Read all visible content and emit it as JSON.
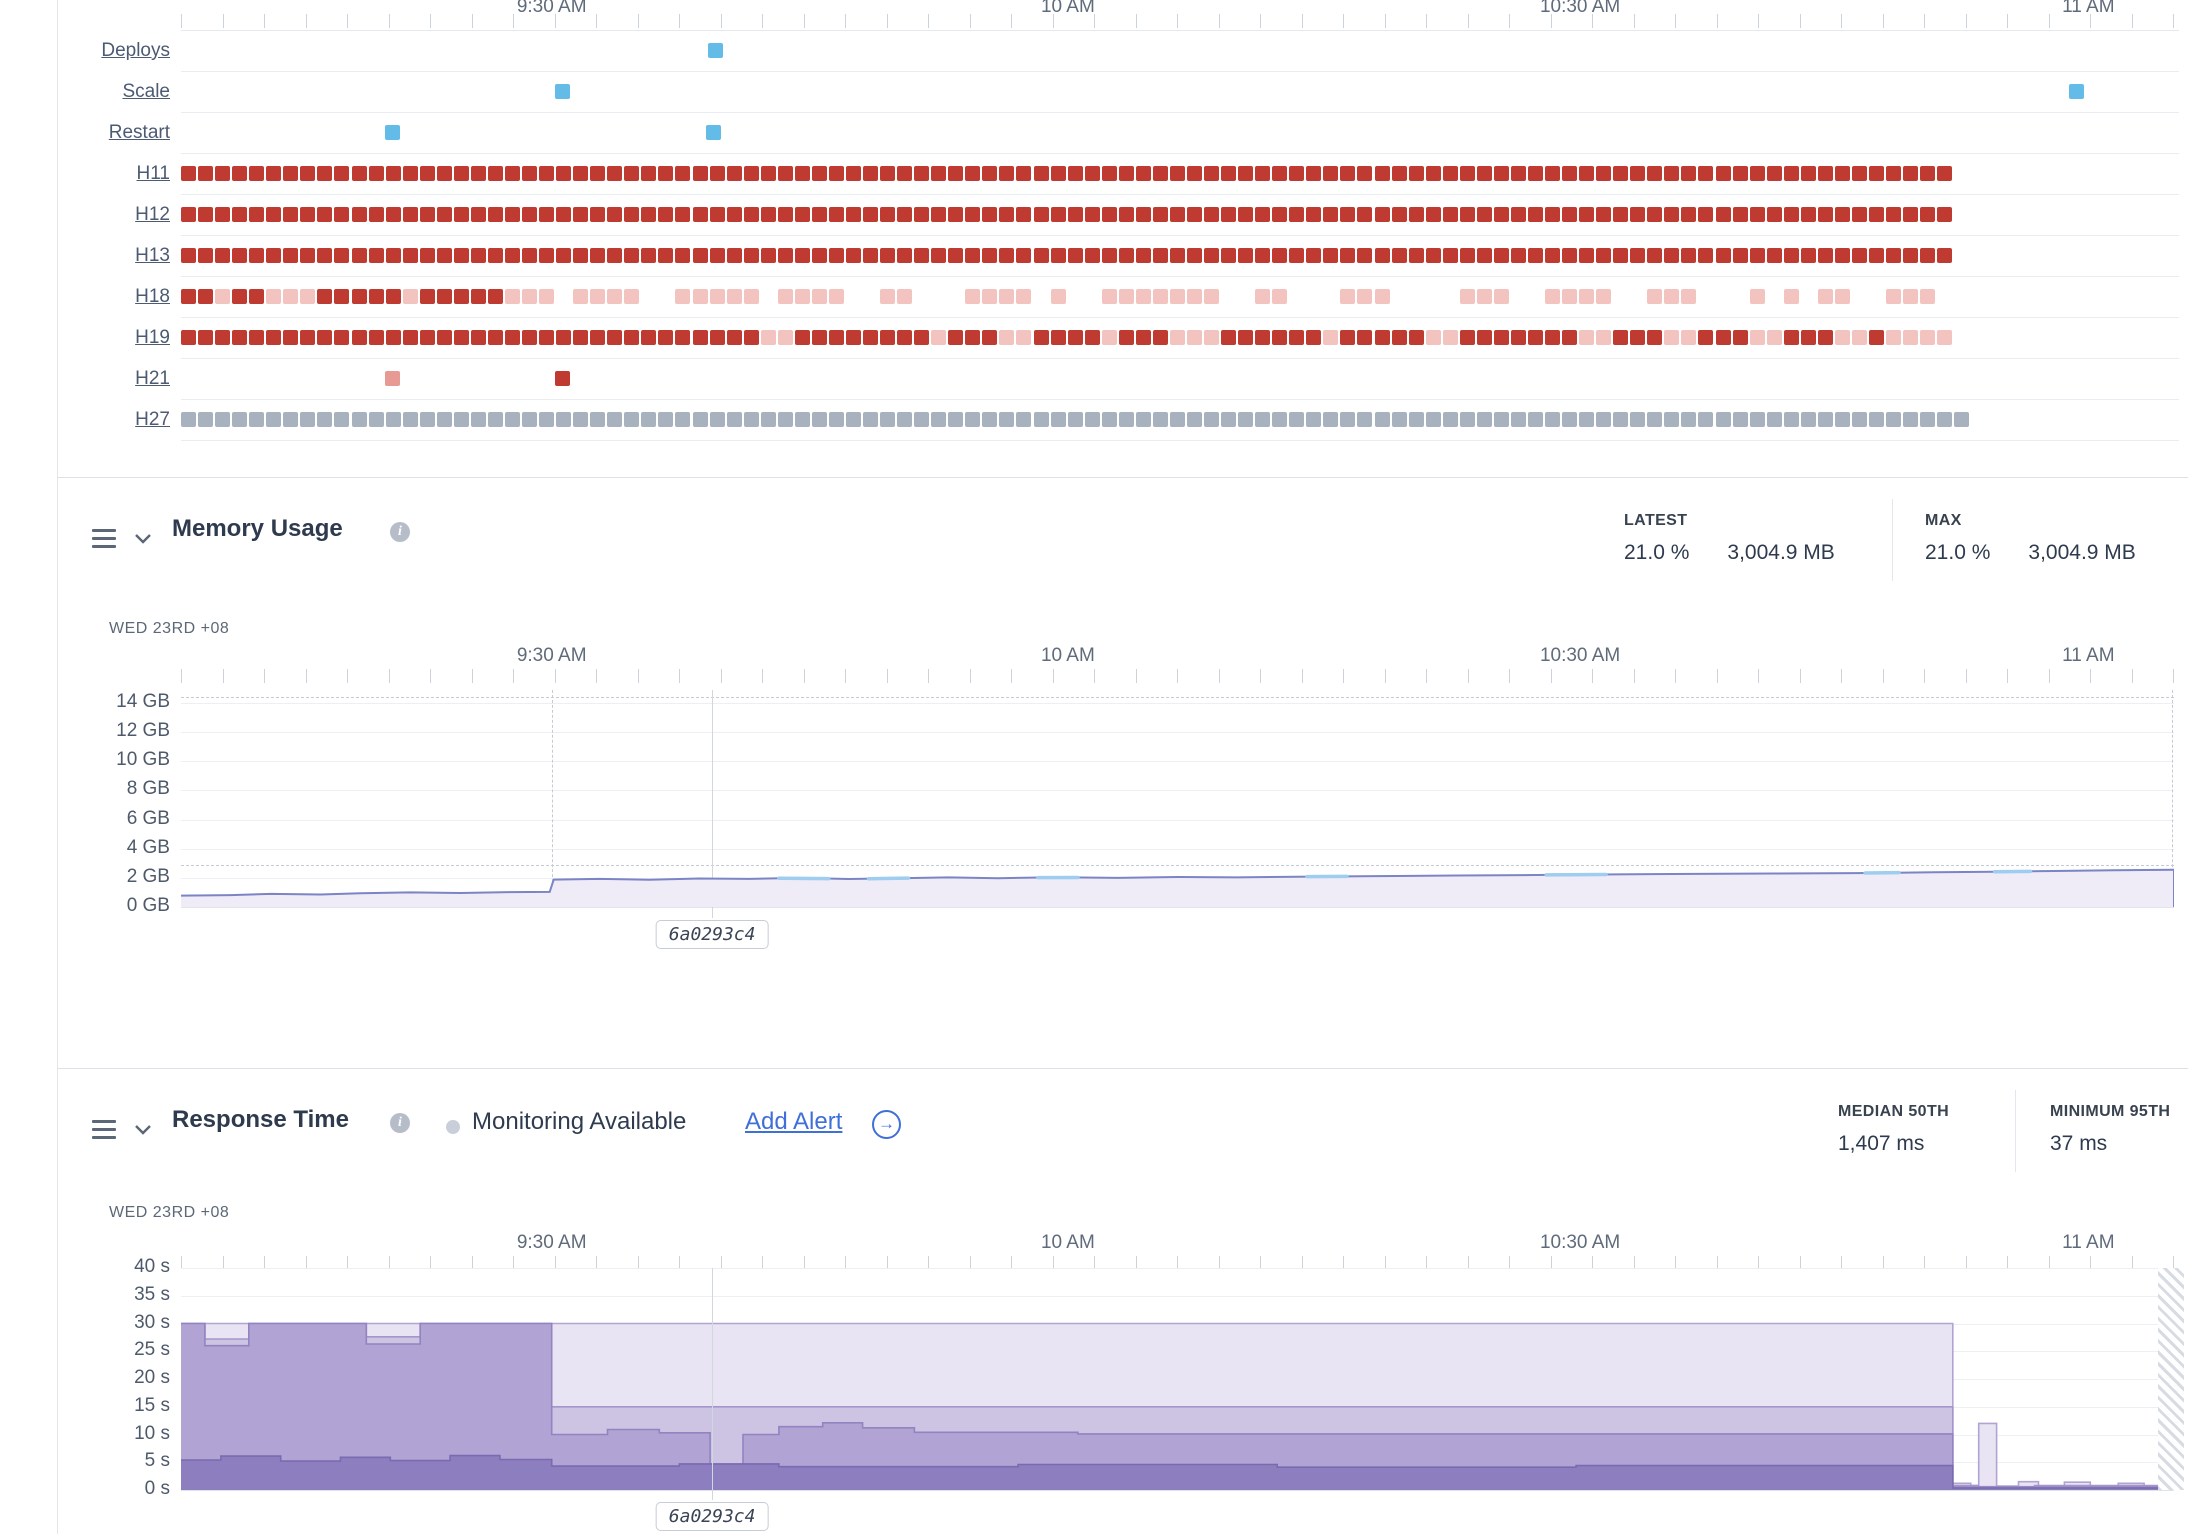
{
  "icons": {
    "info_glyph": "i",
    "arrow_glyph": "→"
  },
  "time_axis": {
    "labels": [
      {
        "text": "9:30 AM",
        "t": 0.186
      },
      {
        "text": "10 AM",
        "t": 0.445
      },
      {
        "text": "10:30 AM",
        "t": 0.702
      },
      {
        "text": "11 AM",
        "t": 0.957
      }
    ]
  },
  "events": {
    "rows": [
      {
        "label": "Deploys",
        "type": "events",
        "items": [
          {
            "t": 0.268,
            "color": "blue"
          }
        ]
      },
      {
        "label": "Scale",
        "type": "events",
        "items": [
          {
            "t": 0.191,
            "color": "blue"
          },
          {
            "t": 0.951,
            "color": "blue"
          }
        ]
      },
      {
        "label": "Restart",
        "type": "events",
        "items": [
          {
            "t": 0.106,
            "color": "blue"
          },
          {
            "t": 0.267,
            "color": "blue"
          }
        ]
      },
      {
        "label": "H11",
        "type": "heat",
        "repeat": "F",
        "count": 104
      },
      {
        "label": "H12",
        "type": "heat",
        "repeat": "F",
        "count": 104
      },
      {
        "label": "H13",
        "type": "heat",
        "repeat": "F",
        "count": 104
      },
      {
        "label": "H18",
        "type": "heat",
        "pattern": [
          "FFLFFLLL",
          "FFFFFLFF",
          "FFFLLL.L",
          "LLL..LLL",
          "LL.LLLL.",
          ".LL...LL",
          "LL.L..LL",
          "LLLLL..L",
          "L...LLL.",
          "...LLL..",
          "LLLL..LL",
          "L...L.L.",
          "LL..LLL."
        ]
      },
      {
        "label": "H19",
        "type": "heat",
        "pattern": [
          "FFFFFFFF",
          "FFFFFFFF",
          "FFFFFFFF",
          "FFFFFFFF",
          "FFLLFFFF",
          "FFFFLFFF",
          "LLFFFFLF",
          "FFLLLFFF",
          "FFFLFFFF",
          "FLLFFFFF",
          "FFLLFFFL",
          "LFFFLLFF",
          "FLLFLLLL"
        ]
      },
      {
        "label": "H21",
        "type": "events",
        "items": [
          {
            "t": 0.106,
            "color": "pink"
          },
          {
            "t": 0.191,
            "color": "red"
          }
        ]
      },
      {
        "label": "H27",
        "type": "heat",
        "repeat": "G",
        "count": 105
      }
    ],
    "cell_colors": {
      "F": "#bf3a30",
      "L": "#f2c3bf",
      "G": "#a8b2be"
    },
    "event_colors": {
      "blue": "#63bbe8",
      "pink": "#e79a93",
      "red": "#bf3a30"
    }
  },
  "memory": {
    "title": "Memory Usage",
    "stats": [
      {
        "label": "LATEST",
        "percent": "21.0 %",
        "size": "3,004.9 MB"
      },
      {
        "label": "MAX",
        "percent": "21.0 %",
        "size": "3,004.9 MB"
      }
    ],
    "date_label": "WED 23RD +08",
    "y_tick_labels": [
      "14 GB",
      "12 GB",
      "10 GB",
      "8 GB",
      "6 GB",
      "4 GB",
      "2 GB",
      "0 GB"
    ],
    "ymax_gb": 14.9,
    "quota_line_gb": 14.4,
    "avg_line_gb": 2.9,
    "deploy_marker_t": 0.186,
    "release_marker": {
      "t": 0.2665,
      "label": "6a0293c4"
    },
    "line_color": "#7b84c4",
    "fill_color": "#efecf8",
    "highlight_color": "#9ecdf0",
    "series": [
      [
        0,
        0.78
      ],
      [
        0.025,
        0.82
      ],
      [
        0.045,
        0.9
      ],
      [
        0.07,
        0.86
      ],
      [
        0.09,
        0.95
      ],
      [
        0.115,
        1.0
      ],
      [
        0.14,
        0.96
      ],
      [
        0.165,
        1.02
      ],
      [
        0.185,
        1.04
      ],
      [
        0.187,
        1.88
      ],
      [
        0.21,
        1.93
      ],
      [
        0.235,
        1.87
      ],
      [
        0.26,
        1.96
      ],
      [
        0.285,
        1.93
      ],
      [
        0.31,
        2.0
      ],
      [
        0.335,
        1.92
      ],
      [
        0.36,
        1.97
      ],
      [
        0.385,
        2.03
      ],
      [
        0.41,
        1.98
      ],
      [
        0.44,
        2.04
      ],
      [
        0.47,
        2.0
      ],
      [
        0.5,
        2.06
      ],
      [
        0.53,
        2.03
      ],
      [
        0.56,
        2.08
      ],
      [
        0.6,
        2.12
      ],
      [
        0.64,
        2.16
      ],
      [
        0.68,
        2.2
      ],
      [
        0.72,
        2.24
      ],
      [
        0.76,
        2.27
      ],
      [
        0.8,
        2.3
      ],
      [
        0.84,
        2.33
      ],
      [
        0.88,
        2.38
      ],
      [
        0.91,
        2.42
      ],
      [
        0.94,
        2.47
      ],
      [
        0.97,
        2.52
      ],
      [
        1.0,
        2.56
      ]
    ],
    "highlight_segments": [
      [
        0.3,
        0.325
      ],
      [
        0.345,
        0.365
      ],
      [
        0.43,
        0.45
      ],
      [
        0.565,
        0.585
      ],
      [
        0.685,
        0.715
      ],
      [
        0.845,
        0.862
      ],
      [
        0.91,
        0.928
      ]
    ]
  },
  "response": {
    "title": "Response Time",
    "monitoring_label": "Monitoring Available",
    "add_alert_label": "Add Alert",
    "stats": [
      {
        "label": "MEDIAN 50TH",
        "value": "1,407 ms"
      },
      {
        "label": "MINIMUM 95TH",
        "value": "37 ms"
      }
    ],
    "date_label": "WED 23RD +08",
    "y_tick_labels": [
      "40 s",
      "35 s",
      "30 s",
      "25 s",
      "20 s",
      "15 s",
      "10 s",
      "5 s",
      "0 s"
    ],
    "ymax_s": 40,
    "release_marker": {
      "t": 0.2665,
      "label": "6a0293c4"
    },
    "bands": [
      {
        "name": "p99-band",
        "color": "#e9e4f3",
        "stroke": "#b2a4d2",
        "points": [
          [
            0,
            30
          ],
          [
            0.889,
            30
          ],
          [
            0.889,
            1.2
          ],
          [
            0.898,
            0.8
          ],
          [
            0.902,
            12
          ],
          [
            0.911,
            12
          ],
          [
            0.911,
            0.7
          ],
          [
            0.922,
            1.5
          ],
          [
            0.932,
            0.7
          ],
          [
            0.945,
            1.4
          ],
          [
            0.958,
            0.7
          ],
          [
            0.972,
            1.2
          ],
          [
            0.985,
            0.6
          ],
          [
            1,
            0.8
          ]
        ]
      },
      {
        "name": "p95-band",
        "color": "#cdc3e3",
        "stroke": "#a496cb",
        "points": [
          [
            0,
            30
          ],
          [
            0.012,
            30
          ],
          [
            0.012,
            27.2
          ],
          [
            0.034,
            27.2
          ],
          [
            0.034,
            30
          ],
          [
            0.093,
            30
          ],
          [
            0.093,
            27.6
          ],
          [
            0.12,
            27.6
          ],
          [
            0.12,
            30
          ],
          [
            0.186,
            30
          ],
          [
            0.186,
            15
          ],
          [
            0.889,
            15
          ],
          [
            0.889,
            0.8
          ],
          [
            0.902,
            0.6
          ],
          [
            0.911,
            0.6
          ],
          [
            0.93,
            0.8
          ],
          [
            1,
            0.5
          ]
        ]
      },
      {
        "name": "p90-band",
        "color": "#b1a3d3",
        "stroke": "#9283c1",
        "points": [
          [
            0,
            30
          ],
          [
            0.012,
            30
          ],
          [
            0.012,
            26
          ],
          [
            0.034,
            26
          ],
          [
            0.034,
            30
          ],
          [
            0.093,
            30
          ],
          [
            0.093,
            26.3
          ],
          [
            0.12,
            26.3
          ],
          [
            0.12,
            30
          ],
          [
            0.186,
            30
          ],
          [
            0.186,
            10
          ],
          [
            0.214,
            10
          ],
          [
            0.214,
            10.9
          ],
          [
            0.24,
            10.9
          ],
          [
            0.24,
            10.3
          ],
          [
            0.2655,
            10.3
          ],
          [
            0.2655,
            2
          ],
          [
            0.282,
            2
          ],
          [
            0.282,
            10
          ],
          [
            0.3,
            10
          ],
          [
            0.3,
            11.4
          ],
          [
            0.322,
            11.4
          ],
          [
            0.322,
            12.1
          ],
          [
            0.342,
            12.1
          ],
          [
            0.342,
            11.2
          ],
          [
            0.368,
            11.2
          ],
          [
            0.368,
            10.4
          ],
          [
            0.45,
            10.4
          ],
          [
            0.45,
            10.1
          ],
          [
            0.889,
            10.1
          ],
          [
            0.889,
            0.5
          ],
          [
            1,
            0.4
          ]
        ]
      },
      {
        "name": "median-band",
        "color": "#8d7ec0",
        "stroke": "#7a6ab0",
        "points": [
          [
            0,
            5.4
          ],
          [
            0.02,
            5.4
          ],
          [
            0.02,
            6.1
          ],
          [
            0.05,
            6.1
          ],
          [
            0.05,
            5.2
          ],
          [
            0.08,
            5.2
          ],
          [
            0.08,
            5.9
          ],
          [
            0.105,
            5.9
          ],
          [
            0.105,
            5.3
          ],
          [
            0.135,
            5.3
          ],
          [
            0.135,
            6.2
          ],
          [
            0.16,
            6.2
          ],
          [
            0.16,
            5.5
          ],
          [
            0.186,
            5.5
          ],
          [
            0.186,
            4.3
          ],
          [
            0.25,
            4.3
          ],
          [
            0.25,
            4.7
          ],
          [
            0.3,
            4.7
          ],
          [
            0.3,
            4.2
          ],
          [
            0.42,
            4.2
          ],
          [
            0.42,
            4.6
          ],
          [
            0.55,
            4.6
          ],
          [
            0.55,
            4.1
          ],
          [
            0.7,
            4.1
          ],
          [
            0.7,
            4.4
          ],
          [
            0.889,
            4.4
          ],
          [
            0.889,
            0.35
          ],
          [
            1,
            0.3
          ]
        ]
      }
    ]
  }
}
